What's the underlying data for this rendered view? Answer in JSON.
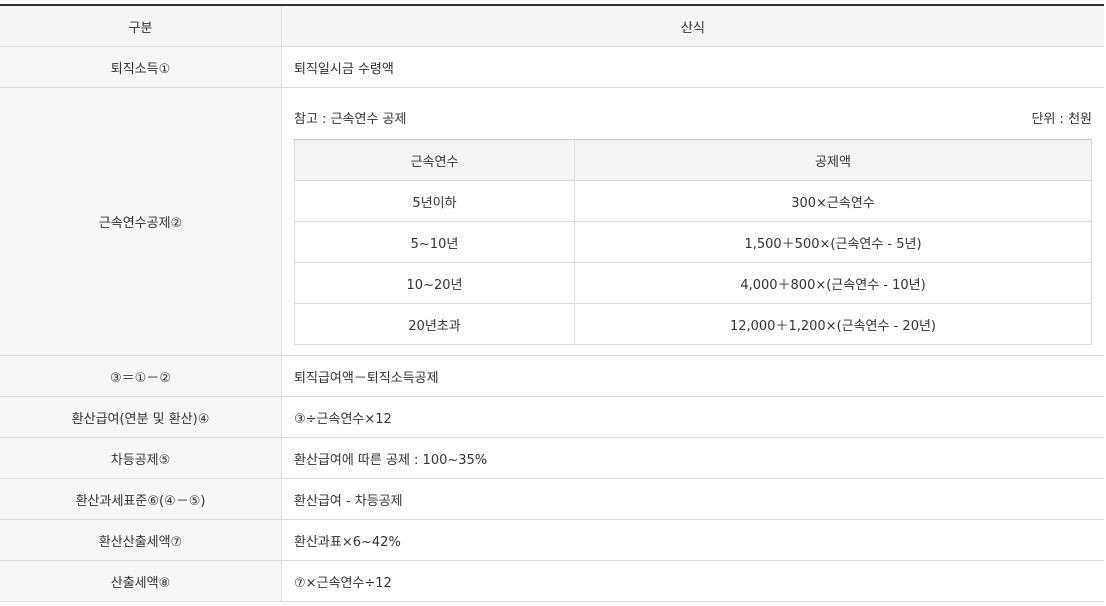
{
  "table": {
    "header": [
      "구분",
      "산식"
    ],
    "rows": [
      {
        "label": "퇴직소득①",
        "formula": "퇴직일시금 수령액"
      },
      {
        "label": "근속연수공제②",
        "note": "참고 : 근속연수 공제",
        "unit": "단위 : 천원",
        "subtable": {
          "header": [
            "근속연수",
            "공제액"
          ],
          "rows": [
            [
              "5년이하",
              "300×근속연수"
            ],
            [
              "5~10년",
              "1,500＋500×(근속연수 - 5년)"
            ],
            [
              "10~20년",
              "4,000＋800×(근속연수 - 10년)"
            ],
            [
              "20년초과",
              "12,000＋1,200×(근속연수 - 20년)"
            ]
          ]
        }
      },
      {
        "label": "③＝①－②",
        "formula": "퇴직급여액－퇴직소득공제"
      },
      {
        "label": "환산급여(연분 및 환산)④",
        "formula": "③÷근속연수×12"
      },
      {
        "label": "차등공제⑤",
        "formula": "환산급여에 따른 공제 : 100~35%"
      },
      {
        "label": "환산과세표준⑥(④－⑤)",
        "formula": "환산급여 - 차등공제"
      },
      {
        "label": "환산산출세액⑦",
        "formula": "환산과표×6~42%"
      },
      {
        "label": "산출세액⑧",
        "formula": "⑦×근속연수÷12"
      }
    ]
  }
}
